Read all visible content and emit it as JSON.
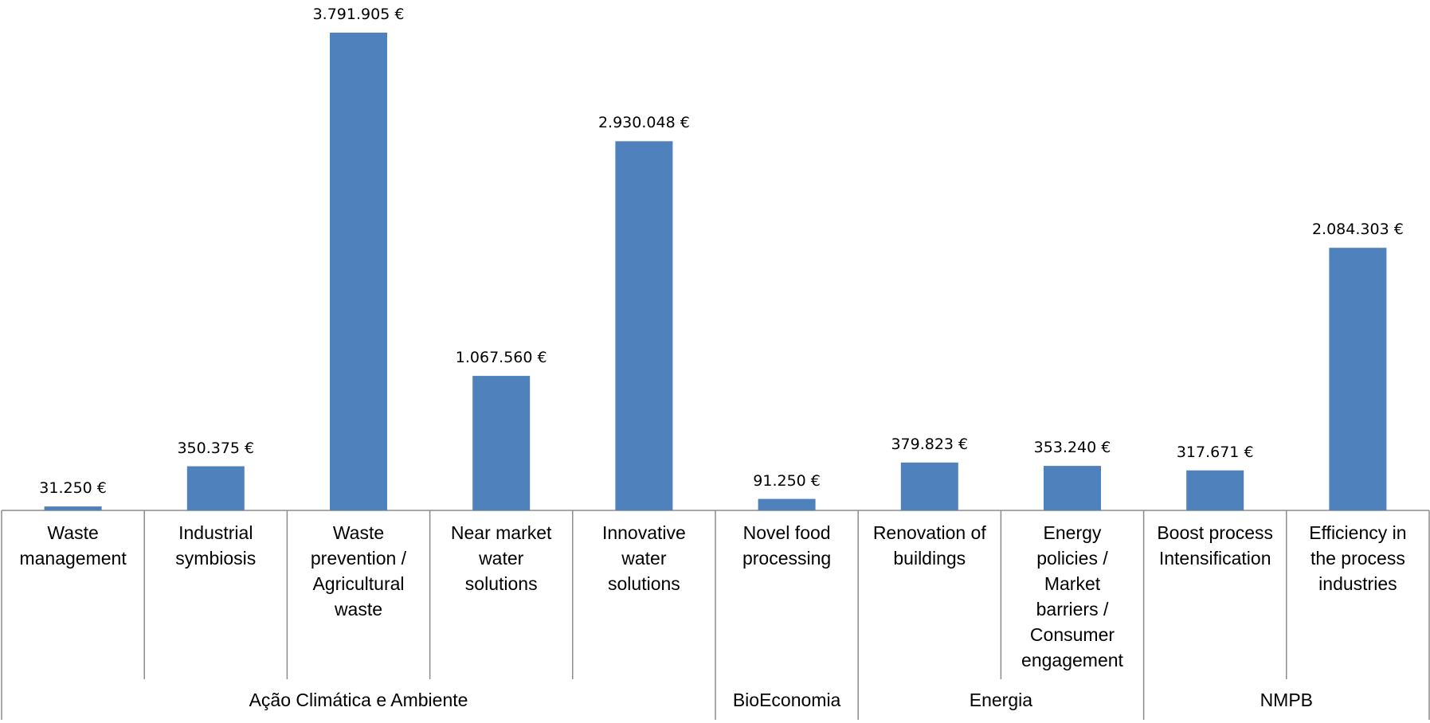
{
  "chart_data": {
    "type": "bar",
    "color": "#4f81bd",
    "groups": [
      {
        "name": "Ação Climática e Ambiente",
        "categories": [
          "Waste\nmanagement",
          "Industrial\nsymbiosis",
          "Waste\nprevention /\nAgricultural\nwaste",
          "Near market\nwater\nsolutions",
          "Innovative\nwater\nsolutions"
        ],
        "values": [
          31250,
          350375,
          3791905,
          1067560,
          2930048
        ],
        "value_labels": [
          "31.250 €",
          "350.375 €",
          "3.791.905 €",
          "1.067.560 €",
          "2.930.048 €"
        ]
      },
      {
        "name": "BioEconomia",
        "categories": [
          "Novel food\nprocessing"
        ],
        "values": [
          91250
        ],
        "value_labels": [
          "91.250 €"
        ]
      },
      {
        "name": "Energia",
        "categories": [
          "Renovation of\nbuildings",
          "Energy\npolicies /\nMarket\nbarriers /\nConsumer\nengagement"
        ],
        "values": [
          379823,
          353240
        ],
        "value_labels": [
          "379.823 €",
          "353.240 €"
        ]
      },
      {
        "name": "NMPB",
        "categories": [
          "Boost process\nIntensification",
          "Efficiency in\nthe process\nindustries"
        ],
        "values": [
          317671,
          2084303
        ],
        "value_labels": [
          "317.671 €",
          "2.084.303 €"
        ]
      }
    ]
  }
}
